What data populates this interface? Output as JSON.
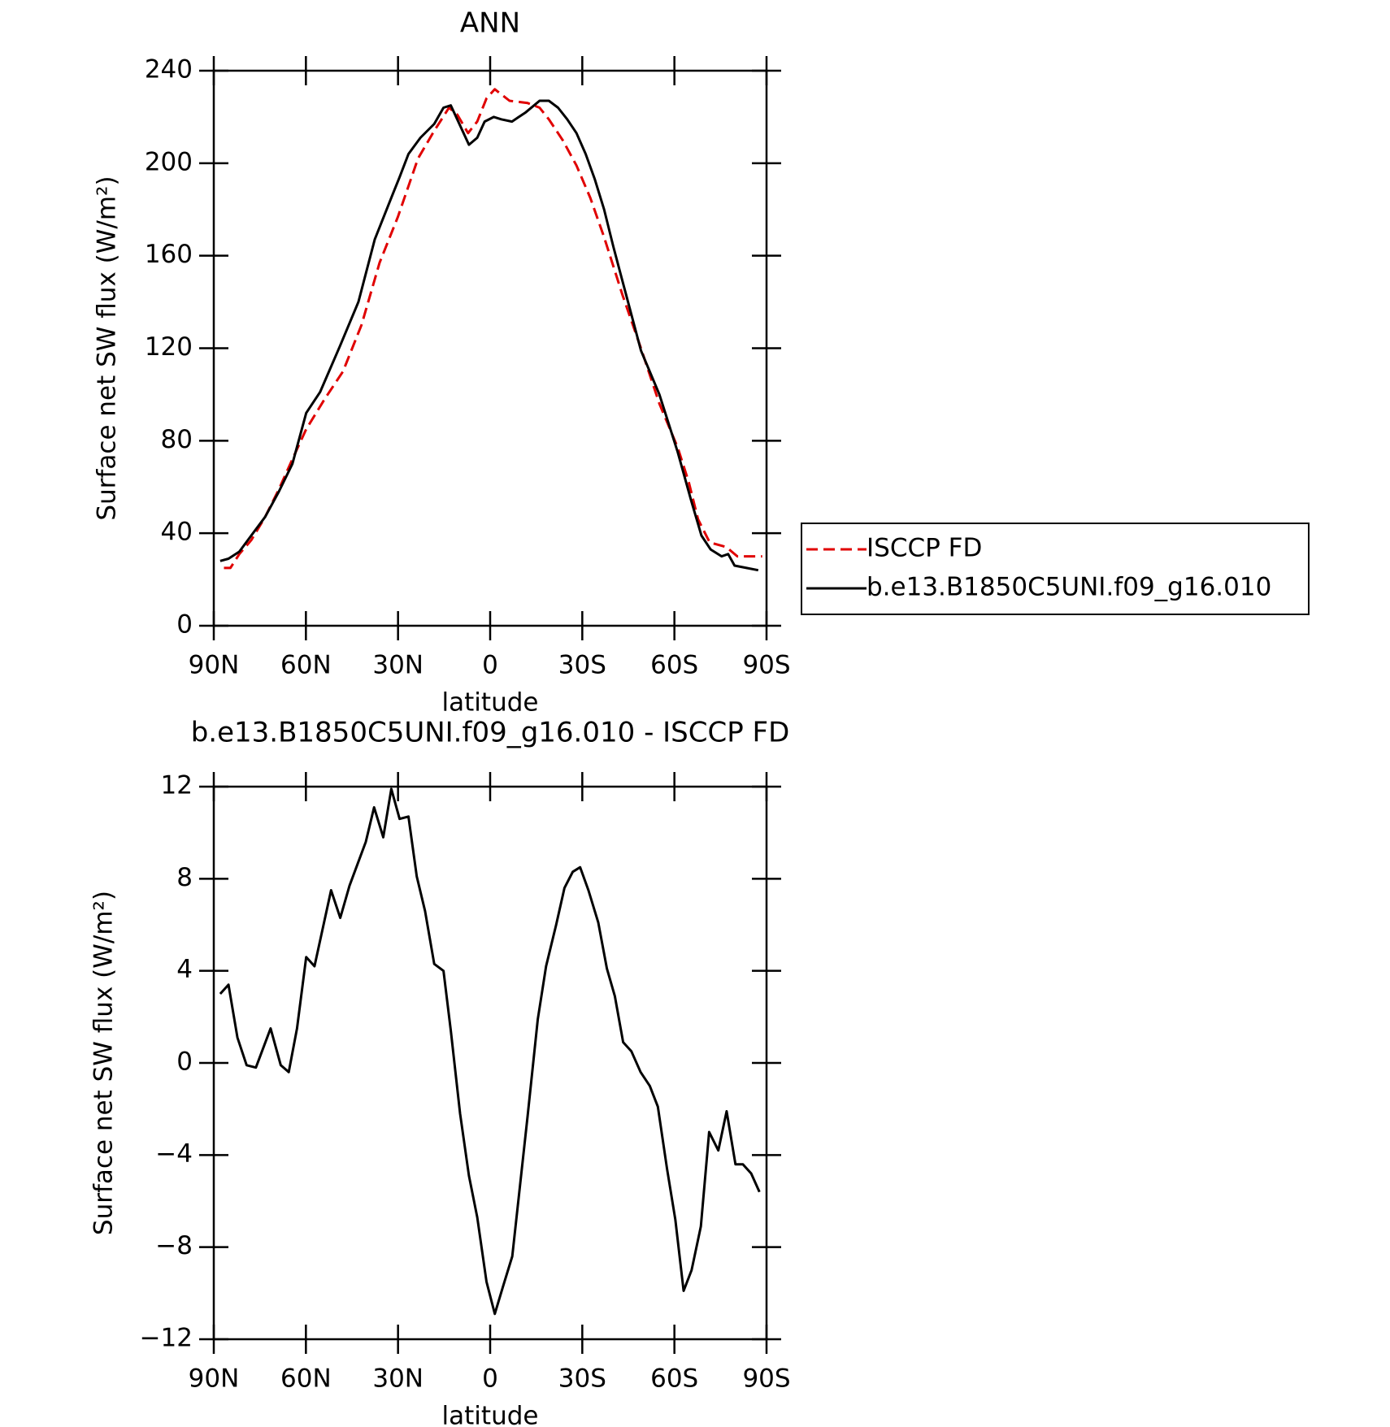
{
  "chart_data": [
    {
      "type": "line",
      "title": "ANN",
      "x_label": "latitude",
      "y_label": "Surface net SW flux (W/m²)",
      "xlim": [
        90,
        -90
      ],
      "xticks": [
        {
          "value": 90,
          "label": "90N"
        },
        {
          "value": 60,
          "label": "60N"
        },
        {
          "value": 30,
          "label": "30N"
        },
        0,
        {
          "value": -30,
          "label": "30S"
        },
        {
          "value": -60,
          "label": "60S"
        },
        {
          "value": -90,
          "label": "90S"
        }
      ],
      "ylim": [
        0,
        240
      ],
      "yticks": [
        0,
        40,
        80,
        120,
        160,
        200,
        240
      ],
      "legend": "right",
      "series": [
        {
          "name": "ISCCP FD",
          "color": "#e00000",
          "dashed": true,
          "x": [
            86.7,
            84.6,
            81.7,
            77.8,
            73.3,
            68.8,
            64.4,
            59.9,
            53.9,
            47.9,
            41.9,
            36.0,
            30.0,
            23.5,
            18.2,
            13.4,
            10.7,
            7.2,
            4.2,
            1.2,
            -1.5,
            -6.3,
            -12.2,
            -16.1,
            -19.1,
            -23.6,
            -28.1,
            -32.6,
            -37.1,
            -43.1,
            -49.1,
            -55.1,
            -61.1,
            -64.7,
            -67.7,
            -71.5,
            -76.9,
            -80.5,
            -84.4,
            -88.6
          ],
          "values": [
            25,
            25,
            31,
            37,
            47,
            59,
            72,
            85,
            98,
            110,
            130,
            157,
            177,
            202,
            214,
            224,
            221,
            213,
            218,
            228,
            232,
            227,
            226,
            224,
            219,
            210,
            199,
            185,
            168,
            143,
            120,
            96,
            77,
            62,
            46,
            36,
            34,
            30,
            30,
            30
          ]
        },
        {
          "name": "b.e13.B1850C5UNI.f09_g16.010",
          "color": "#000000",
          "dashed": false,
          "x": [
            87.9,
            85.2,
            81.7,
            77.8,
            73.3,
            68.8,
            64.4,
            59.9,
            55.4,
            48.9,
            42.9,
            37.6,
            31.6,
            29.5,
            26.6,
            22.7,
            18.2,
            15.2,
            12.8,
            6.9,
            4.2,
            1.8,
            -1.2,
            -3.6,
            -7.1,
            -11.6,
            -16.1,
            -19.1,
            -22.1,
            -25.1,
            -28.1,
            -31.1,
            -34.1,
            -37.1,
            -40.1,
            -43.1,
            -46.1,
            -49.1,
            -55.1,
            -61.1,
            -65.5,
            -68.8,
            -71.8,
            -75.4,
            -77.5,
            -79.6,
            -83.5,
            -87.3
          ],
          "values": [
            28,
            29,
            32,
            39,
            47,
            58,
            70,
            92,
            101,
            121,
            140,
            167,
            187,
            194,
            204,
            211,
            217,
            224,
            225,
            208,
            211,
            218,
            220,
            219,
            218,
            222,
            227,
            227,
            224,
            219,
            213,
            204,
            193,
            180,
            164,
            149,
            134,
            119,
            100,
            75,
            54,
            39,
            33,
            30,
            31,
            26,
            25,
            24
          ]
        }
      ]
    },
    {
      "type": "line",
      "title": "b.e13.B1850C5UNI.f09_g16.010 - ISCCP FD",
      "x_label": "latitude",
      "y_label": "Surface net SW flux (W/m²)",
      "xlim": [
        90,
        -90
      ],
      "xticks": [
        {
          "value": 90,
          "label": "90N"
        },
        {
          "value": 60,
          "label": "60N"
        },
        {
          "value": 30,
          "label": "30N"
        },
        0,
        {
          "value": -30,
          "label": "30S"
        },
        {
          "value": -60,
          "label": "60S"
        },
        {
          "value": -90,
          "label": "90S"
        }
      ],
      "ylim": [
        -12,
        12
      ],
      "yticks": [
        {
          "value": -12,
          "label": "−12"
        },
        {
          "value": -8,
          "label": "−8"
        },
        {
          "value": -4,
          "label": "−4"
        },
        0,
        4,
        8,
        12
      ],
      "series": [
        {
          "color": "#000000",
          "dashed": false,
          "x": [
            87.9,
            85.2,
            82.3,
            79.3,
            76.3,
            71.5,
            68.2,
            65.6,
            62.9,
            59.9,
            57.2,
            51.8,
            48.8,
            45.8,
            40.5,
            37.8,
            34.8,
            32.2,
            29.5,
            26.6,
            23.9,
            21.2,
            18.2,
            15.2,
            12.8,
            9.8,
            6.9,
            4.2,
            1.2,
            -1.5,
            -4.2,
            -7.2,
            -12.2,
            -15.5,
            -18.2,
            -21.5,
            -24.2,
            -26.9,
            -29.3,
            -32.0,
            -35.2,
            -38.0,
            -40.6,
            -43.3,
            -46.0,
            -49.0,
            -52.0,
            -54.6,
            -57.6,
            -60.3,
            -63.0,
            -65.6,
            -68.6,
            -71.3,
            -74.3,
            -77.0,
            -79.9,
            -82.3,
            -85.0,
            -87.7
          ],
          "values": [
            3.0,
            3.4,
            1.1,
            -0.1,
            -0.2,
            1.5,
            -0.1,
            -0.4,
            1.5,
            4.6,
            4.2,
            7.5,
            6.3,
            7.7,
            9.6,
            11.1,
            9.8,
            11.9,
            10.6,
            10.7,
            8.1,
            6.6,
            4.3,
            4.0,
            1.4,
            -2.2,
            -4.9,
            -6.7,
            -9.5,
            -10.9,
            -9.7,
            -8.4,
            -2.3,
            1.9,
            4.2,
            6.0,
            7.6,
            8.3,
            8.5,
            7.5,
            6.1,
            4.1,
            2.9,
            0.9,
            0.5,
            -0.4,
            -1.0,
            -1.9,
            -4.6,
            -6.8,
            -9.9,
            -9.0,
            -7.1,
            -3.0,
            -3.8,
            -2.1,
            -4.4,
            -4.4,
            -4.8,
            -5.6
          ]
        }
      ]
    }
  ]
}
